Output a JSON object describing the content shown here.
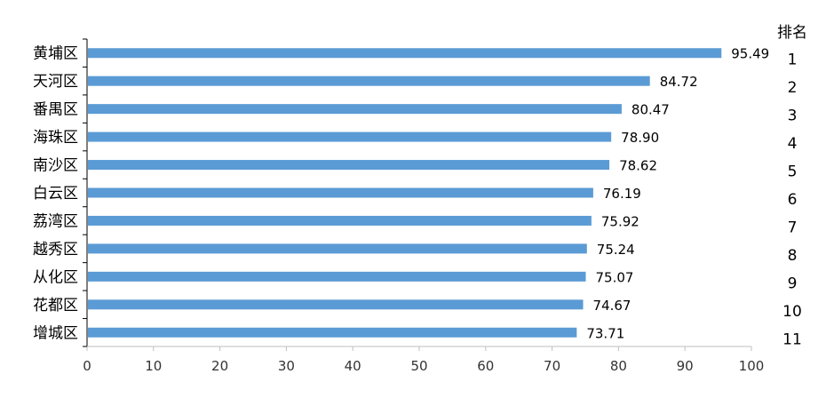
{
  "chart_data": {
    "type": "bar",
    "orientation": "horizontal",
    "categories": [
      "黄埔区",
      "天河区",
      "番禺区",
      "海珠区",
      "南沙区",
      "白云区",
      "荔湾区",
      "越秀区",
      "从化区",
      "花都区",
      "增城区"
    ],
    "values": [
      95.49,
      84.72,
      80.47,
      78.9,
      78.62,
      76.19,
      75.92,
      75.24,
      75.07,
      74.67,
      73.71
    ],
    "value_labels": [
      "95.49",
      "84.72",
      "80.47",
      "78.90",
      "78.62",
      "76.19",
      "75.92",
      "75.24",
      "75.07",
      "74.67",
      "73.71"
    ],
    "ranks": [
      "1",
      "2",
      "3",
      "4",
      "5",
      "6",
      "7",
      "8",
      "9",
      "10",
      "11"
    ],
    "rank_header": "排名",
    "xlim": [
      0,
      100
    ],
    "xticks": [
      0,
      10,
      20,
      30,
      40,
      50,
      60,
      70,
      80,
      90,
      100
    ],
    "title": "",
    "xlabel": "",
    "ylabel": "",
    "grid": false,
    "bar_color": "#5b9bd5"
  }
}
